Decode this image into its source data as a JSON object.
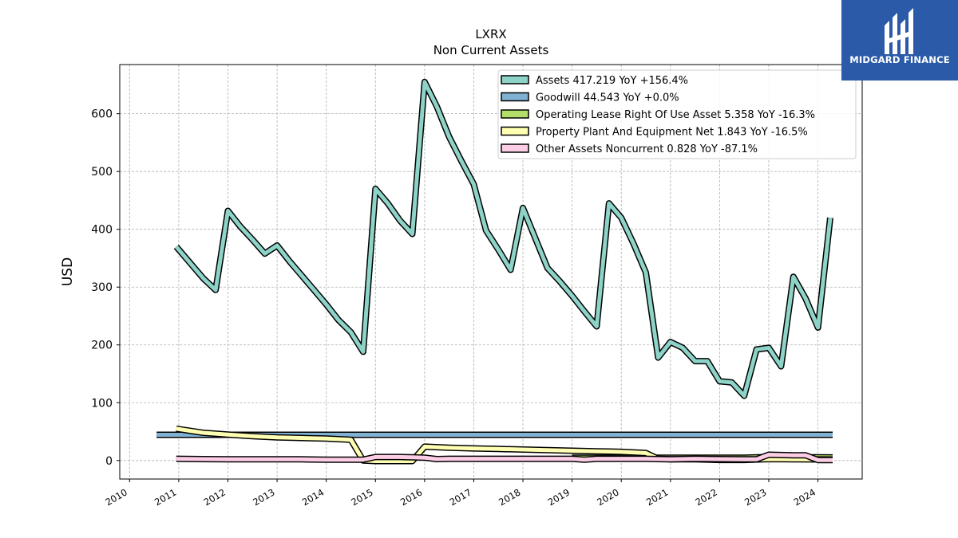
{
  "chart_data": {
    "type": "line",
    "title": "LXRX",
    "subtitle": "Non Current  Assets",
    "ylabel": "USD",
    "xlabel": "",
    "ylim": [
      -32,
      685
    ],
    "xlim": [
      2009.8,
      2024.9
    ],
    "yticks": [
      0,
      100,
      200,
      300,
      400,
      500,
      600
    ],
    "xticks": [
      "2010",
      "2011",
      "2012",
      "2013",
      "2014",
      "2015",
      "2016",
      "2017",
      "2018",
      "2019",
      "2020",
      "2021",
      "2022",
      "2023",
      "2024"
    ],
    "grid": true,
    "legend_position": "top-right",
    "series": [
      {
        "name": "Assets",
        "legend": "Assets  417.219 YoY +156.4%",
        "color": "#8dd3c7",
        "x": [
          2010.95,
          2011.25,
          2011.5,
          2011.75,
          2012.0,
          2012.25,
          2012.5,
          2012.75,
          2013.0,
          2013.25,
          2013.5,
          2013.75,
          2014.0,
          2014.25,
          2014.5,
          2014.75,
          2015.0,
          2015.25,
          2015.5,
          2015.75,
          2016.0,
          2016.25,
          2016.5,
          2016.75,
          2017.0,
          2017.25,
          2017.5,
          2017.75,
          2018.0,
          2018.25,
          2018.5,
          2018.75,
          2019.0,
          2019.25,
          2019.5,
          2019.75,
          2020.0,
          2020.25,
          2020.5,
          2020.75,
          2021.0,
          2021.25,
          2021.5,
          2021.75,
          2022.0,
          2022.25,
          2022.5,
          2022.75,
          2023.0,
          2023.25,
          2023.5,
          2023.75,
          2024.0,
          2024.25
        ],
        "y": [
          370,
          340,
          315,
          295,
          432,
          405,
          382,
          358,
          372,
          345,
          320,
          295,
          270,
          243,
          222,
          188,
          470,
          445,
          415,
          392,
          655,
          612,
          560,
          518,
          478,
          398,
          365,
          330,
          437,
          385,
          333,
          310,
          285,
          258,
          232,
          445,
          420,
          375,
          325,
          178,
          205,
          195,
          172,
          172,
          137,
          135,
          112,
          192,
          195,
          163,
          318,
          280,
          230,
          420
        ]
      },
      {
        "name": "Goodwill",
        "legend": "Goodwill  44.543 YoY +0.0%",
        "color": "#80b1d3",
        "x": [
          2010.55,
          2024.3
        ],
        "y": [
          44.543,
          44.543
        ]
      },
      {
        "name": "Operating Lease Right Of Use Asset",
        "legend": "Operating Lease Right Of Use Asset  5.358 YoY -16.3%",
        "color": "#b3de69",
        "x": [
          2019.0,
          2019.5,
          2020.0,
          2020.5,
          2021.0,
          2021.5,
          2022.0,
          2022.5,
          2023.0,
          2023.5,
          2024.0,
          2024.3
        ],
        "y": [
          5,
          5,
          5,
          5,
          5,
          5,
          5,
          5,
          6,
          6,
          5.5,
          5.358
        ]
      },
      {
        "name": "Property Plant And Equipment Net",
        "legend": "Property Plant And Equipment Net  1.843 YoY -16.5%",
        "color": "#ffffb3",
        "x": [
          2010.95,
          2011.5,
          2012.0,
          2012.5,
          2013.0,
          2013.5,
          2014.0,
          2014.5,
          2014.75,
          2015.0,
          2015.5,
          2015.75,
          2016.0,
          2016.5,
          2017.0,
          2017.5,
          2018.0,
          2018.5,
          2019.0,
          2019.5,
          2020.0,
          2020.25,
          2020.5,
          2020.75,
          2021.0,
          2021.5,
          2022.0,
          2022.5,
          2023.0,
          2023.5,
          2024.0,
          2024.3
        ],
        "y": [
          55,
          48,
          45,
          42,
          40,
          39,
          38,
          36,
          0,
          -1,
          -1,
          -1,
          24,
          22,
          21,
          20,
          19,
          18,
          17,
          16,
          15,
          14,
          13,
          3,
          2,
          2,
          1,
          1,
          2.5,
          2.2,
          1.9,
          1.843
        ]
      },
      {
        "name": "Other Assets Noncurrent",
        "legend": "Other Assets Noncurrent  0.828 YoY -87.1%",
        "color": "#fccde5",
        "x": [
          2010.95,
          2011.5,
          2012.0,
          2012.5,
          2013.0,
          2013.5,
          2014.0,
          2014.5,
          2014.75,
          2015.0,
          2015.5,
          2015.75,
          2016.0,
          2016.25,
          2016.5,
          2017.0,
          2017.5,
          2018.0,
          2018.5,
          2019.0,
          2019.25,
          2019.5,
          2020.0,
          2020.5,
          2020.75,
          2021.0,
          2021.5,
          2022.0,
          2022.5,
          2022.75,
          2023.0,
          2023.5,
          2023.75,
          2024.0,
          2024.3
        ],
        "y": [
          3,
          2.5,
          2,
          2,
          2,
          2,
          1.5,
          1.5,
          1.5,
          6,
          6,
          5.5,
          5,
          2.5,
          3,
          3,
          3,
          3,
          3,
          3,
          1.5,
          3,
          3,
          3,
          2.5,
          2,
          3,
          2.5,
          2,
          2,
          10,
          9,
          9,
          0.8,
          0.828
        ]
      }
    ]
  },
  "logo": {
    "text": "MIDGARD FINANCE",
    "background": "#2a5aa8"
  }
}
